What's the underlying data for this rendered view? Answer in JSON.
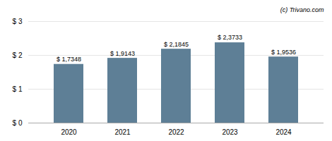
{
  "chart_data": {
    "type": "bar",
    "categories": [
      "2020",
      "2021",
      "2022",
      "2023",
      "2024"
    ],
    "values": [
      1.7348,
      1.9143,
      2.1845,
      2.3733,
      1.9536
    ],
    "value_labels": [
      "$ 1,7348",
      "$ 1,9143",
      "$ 2,1845",
      "$ 2,3733",
      "$ 1,9536"
    ],
    "data_labels": true,
    "color": "#5e7f96",
    "ylim": [
      0,
      3
    ],
    "yticks": [
      {
        "value": 0,
        "label": "$ 0"
      },
      {
        "value": 1,
        "label": "$ 1"
      },
      {
        "value": 2,
        "label": "$ 2"
      },
      {
        "value": 3,
        "label": "$ 3"
      }
    ],
    "grid": true,
    "annotations": [
      "(c) Trivano.com"
    ]
  }
}
